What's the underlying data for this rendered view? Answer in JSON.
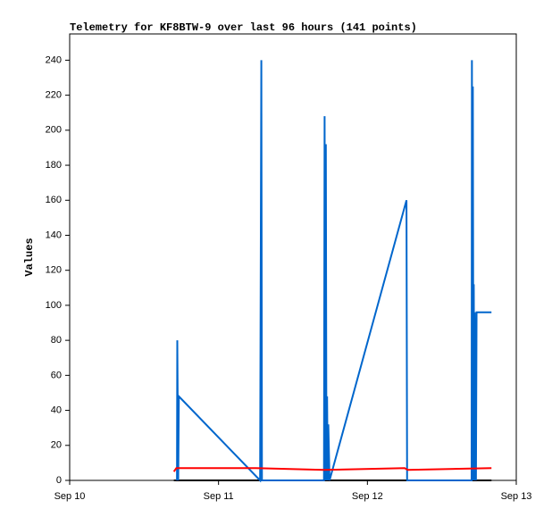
{
  "chart_data": {
    "type": "line",
    "title": "Telemetry for KF8BTW-9 over last 96 hours (141 points)",
    "y_label": "Values",
    "xlim": [
      0,
      72
    ],
    "xticks": [
      {
        "value": 0,
        "label": "Sep 10"
      },
      {
        "value": 24,
        "label": "Sep 11"
      },
      {
        "value": 48,
        "label": "Sep 12"
      },
      {
        "value": 72,
        "label": "Sep 13"
      }
    ],
    "ylim": [
      0,
      255
    ],
    "yticks": [
      0,
      20,
      40,
      60,
      80,
      100,
      120,
      140,
      160,
      180,
      200,
      220,
      240
    ],
    "series": [
      {
        "color": "#000000",
        "x": [
          16.8,
          68.0
        ],
        "values": [
          0,
          0
        ]
      },
      {
        "color": "#0066cc",
        "x": [
          17.3,
          17.35,
          17.5,
          17.6,
          30.7,
          30.9,
          31.0,
          41.0,
          41.1,
          41.2,
          41.3,
          41.4,
          41.5,
          41.6,
          41.7,
          41.9,
          54.3,
          54.4,
          64.8,
          64.85,
          64.95,
          65.0,
          65.1,
          65.15,
          65.25,
          65.3,
          65.5,
          65.6,
          68.0
        ],
        "values": [
          0,
          80,
          0,
          48,
          0,
          240,
          0,
          0,
          208,
          0,
          192,
          0,
          48,
          0,
          32,
          0,
          160,
          0,
          0,
          240,
          0,
          225,
          0,
          112,
          0,
          96,
          0,
          96,
          96
        ]
      },
      {
        "color": "#ff0000",
        "x": [
          16.8,
          17.2,
          30.0,
          41.0,
          54.0,
          54.5,
          68.0
        ],
        "values": [
          5,
          7,
          7,
          6,
          7,
          6,
          7
        ]
      }
    ]
  }
}
